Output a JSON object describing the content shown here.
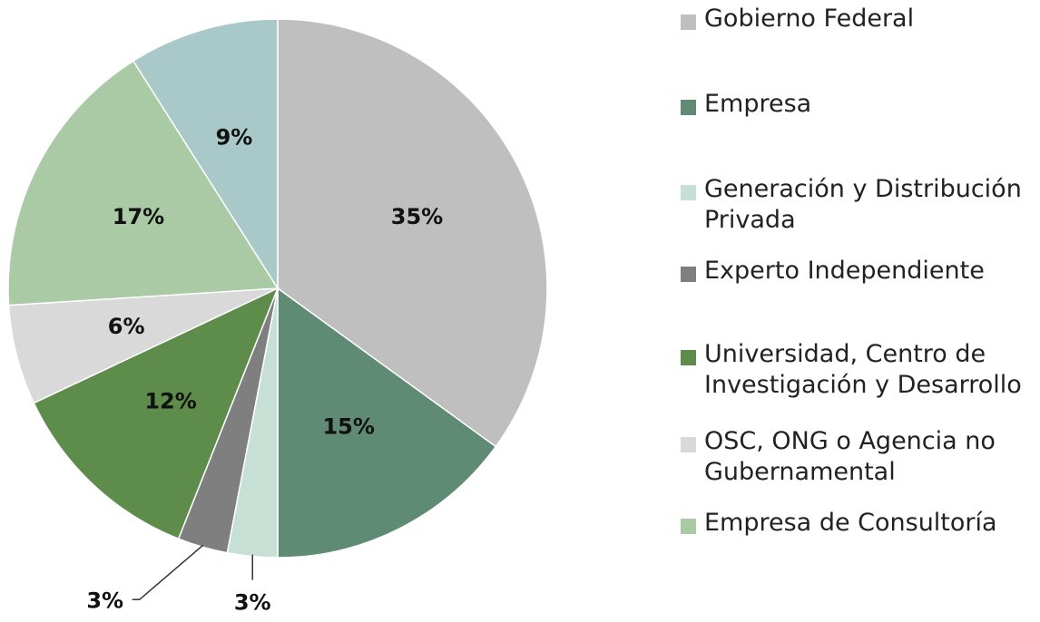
{
  "chart_data": {
    "type": "pie",
    "categories": [
      "Gobierno Federal",
      "Empresa",
      "Generación y Distribución Privada",
      "Experto Independiente",
      "Universidad, Centro de Investigación y Desarrollo",
      "OSC, ONG o Agencia no Gubernamental",
      "Empresa de Consultoría",
      null
    ],
    "values": [
      35,
      15,
      3,
      3,
      12,
      6,
      17,
      9
    ],
    "value_labels": [
      "35%",
      "15%",
      "3%",
      "3%",
      "12%",
      "6%",
      "17%",
      "9%"
    ],
    "colors": [
      "#bfbfbf",
      "#5f8a73",
      "#c6e0d5",
      "#7f7f7f",
      "#5e8c4b",
      "#d9d9d9",
      "#aacaa5",
      "#a9c9c9"
    ],
    "legend": "right"
  }
}
